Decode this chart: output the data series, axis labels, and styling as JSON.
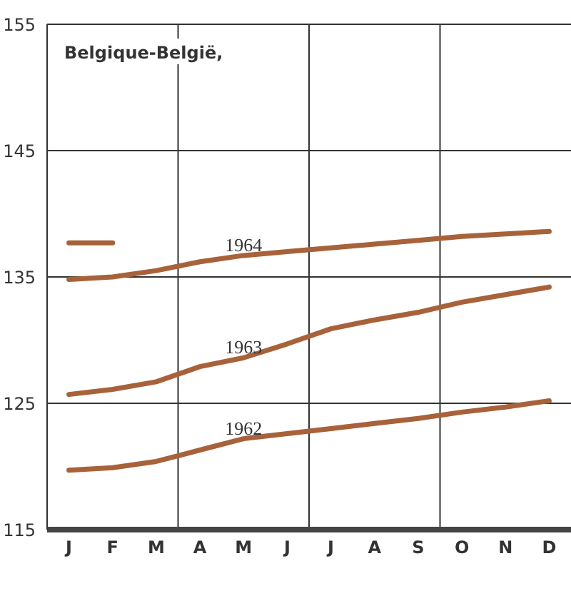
{
  "chart_data": {
    "type": "line",
    "title": "Belgique-België,",
    "categories": [
      "J",
      "F",
      "M",
      "A",
      "M",
      "J",
      "J",
      "A",
      "S",
      "O",
      "N",
      "D"
    ],
    "series": [
      {
        "name": "1962",
        "color": "#a8623a",
        "values": [
          119.7,
          119.9,
          120.4,
          121.3,
          122.2,
          122.6,
          123.0,
          123.4,
          123.8,
          124.3,
          124.7,
          125.2
        ]
      },
      {
        "name": "1963",
        "color": "#a8623a",
        "values": [
          125.7,
          126.1,
          126.7,
          127.9,
          128.6,
          129.7,
          130.9,
          131.6,
          132.2,
          133.0,
          133.6,
          134.2
        ]
      },
      {
        "name": "1964",
        "color": "#a8623a",
        "values": [
          134.8,
          135.0,
          135.5,
          136.2,
          136.7,
          137.0,
          137.3,
          137.6,
          137.9,
          138.2,
          138.4,
          138.6
        ]
      },
      {
        "color": "#a8623a",
        "values": [
          137.7,
          137.7,
          null,
          null,
          null,
          null,
          null,
          null,
          null,
          null,
          null,
          null
        ]
      }
    ],
    "ylim": [
      115,
      155
    ],
    "yticks": [
      115,
      125,
      135,
      145,
      155
    ],
    "grid": true,
    "marker": "none",
    "line_style": "solid"
  }
}
